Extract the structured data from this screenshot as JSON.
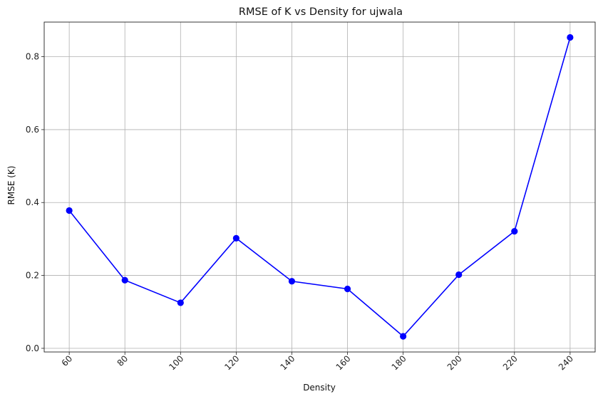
{
  "chart_data": {
    "type": "line",
    "title": "RMSE of K vs Density for ujwala",
    "xlabel": "Density",
    "ylabel": "RMSE (K)",
    "x": [
      60,
      80,
      100,
      120,
      140,
      160,
      180,
      200,
      220,
      240
    ],
    "series": [
      {
        "values": [
          0.378,
          0.187,
          0.125,
          0.302,
          0.184,
          0.163,
          0.033,
          0.202,
          0.321,
          0.853
        ]
      }
    ],
    "xticks": [
      "60",
      "80",
      "100",
      "120",
      "140",
      "160",
      "180",
      "200",
      "220",
      "240"
    ],
    "yticks": [
      "0.0",
      "0.2",
      "0.4",
      "0.6",
      "0.8"
    ],
    "xlim": [
      51,
      249
    ],
    "ylim": [
      -0.01,
      0.895
    ],
    "grid": true,
    "x_tick_rotation": "45-degrees",
    "line_color": "#0000ff",
    "marker": "circle"
  }
}
